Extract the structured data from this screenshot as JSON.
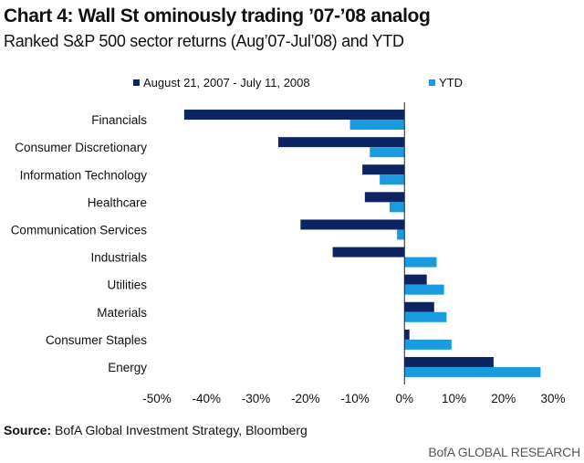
{
  "header": {
    "title": "Chart 4: Wall St ominously trading ’07-’08 analog",
    "subtitle": "Ranked S&P 500 sector returns (Aug’07-Jul’08) and YTD"
  },
  "chart_data": {
    "type": "bar",
    "orientation": "horizontal",
    "categories": [
      "Financials",
      "Consumer Discretionary",
      "Information Technology",
      "Healthcare",
      "Communication Services",
      "Industrials",
      "Utilities",
      "Materials",
      "Consumer Staples",
      "Energy"
    ],
    "series": [
      {
        "name": "August 21, 2007 - July 11, 2008",
        "color": "#0c2461",
        "values": [
          -44.5,
          -25.5,
          -8.5,
          -8,
          -21,
          -14.5,
          4.5,
          6,
          1,
          18
        ]
      },
      {
        "name": "YTD",
        "color": "#1a9be0",
        "values": [
          -11,
          -7,
          -5,
          -3,
          -1.5,
          6.5,
          8,
          8.5,
          9.5,
          27.5
        ]
      }
    ],
    "xlim": [
      -50,
      30
    ],
    "xticks": [
      -50,
      -40,
      -30,
      -20,
      -10,
      0,
      10,
      20,
      30
    ],
    "tick_labels": [
      "-50%",
      "-40%",
      "-30%",
      "-20%",
      "-10%",
      "0%",
      "10%",
      "20%",
      "30%"
    ],
    "legend_position": "top"
  },
  "footer": {
    "source_label": "Source:",
    "source_text": " BofA Global Investment Strategy, Bloomberg",
    "brand": "BofA GLOBAL RESEARCH"
  }
}
